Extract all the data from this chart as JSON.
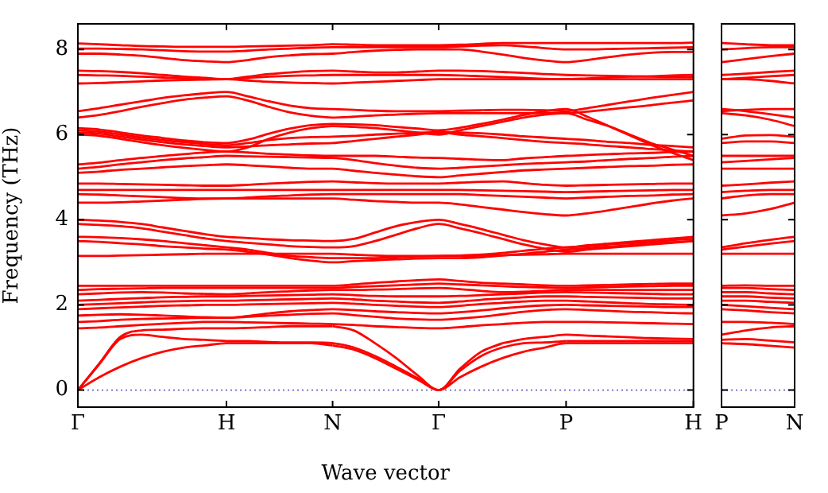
{
  "chart_data": [
    {
      "type": "line",
      "xlabel": "Wave vector",
      "ylabel": "Frequency (THz)",
      "marker": "none",
      "ylim": [
        -0.4,
        8.6
      ],
      "yticks": [
        0,
        2,
        4,
        6,
        8
      ],
      "categories": [
        "Γ",
        null,
        null,
        null,
        null,
        null,
        null,
        "H",
        null,
        null,
        null,
        null,
        "N",
        null,
        null,
        null,
        null,
        "Γ",
        null,
        null,
        null,
        null,
        null,
        "P",
        null,
        null,
        null,
        null,
        null,
        "H"
      ],
      "ref_lines": [
        {
          "axis": "y",
          "value": 0,
          "color": "#6666cc",
          "line_style": "dotted"
        }
      ],
      "series": [
        {
          "color": "#ff0000",
          "values": [
            0,
            0.3,
            0.55,
            0.75,
            0.9,
            1.0,
            1.05,
            1.1,
            1.1,
            1.1,
            1.1,
            1.1,
            1.05,
            null,
            null,
            null,
            null,
            null,
            null,
            null,
            null,
            null,
            null,
            null,
            null,
            null,
            null,
            null,
            null,
            null
          ]
        },
        {
          "color": "#ff0000",
          "values": [
            null,
            null,
            null,
            null,
            null,
            null,
            null,
            null,
            null,
            null,
            null,
            null,
            1.05,
            0.95,
            0.75,
            0.5,
            0.25,
            0,
            0.3,
            0.55,
            0.75,
            0.9,
            1.0,
            1.1,
            1.1,
            1.1,
            1.1,
            1.1,
            1.1,
            1.1
          ]
        },
        {
          "color": "#ff0000",
          "values": [
            0,
            0.6,
            1.2,
            1.3,
            1.25,
            1.2,
            1.18,
            1.15,
            null,
            null,
            null,
            null,
            null,
            null,
            null,
            null,
            null,
            null,
            null,
            null,
            null,
            null,
            null,
            null,
            null,
            null,
            null,
            null,
            null,
            null
          ]
        },
        {
          "color": "#ff0000",
          "values": [
            null,
            null,
            null,
            null,
            null,
            null,
            null,
            1.15,
            1.15,
            1.13,
            1.12,
            1.12,
            1.1,
            1.0,
            0.8,
            0.55,
            0.28,
            0,
            0.45,
            0.8,
            1.0,
            1.1,
            1.12,
            1.15,
            null,
            null,
            null,
            null,
            null,
            null
          ]
        },
        {
          "color": "#ff0000",
          "values": [
            null,
            null,
            null,
            null,
            null,
            null,
            null,
            null,
            null,
            null,
            null,
            null,
            null,
            null,
            null,
            null,
            null,
            null,
            null,
            null,
            null,
            null,
            null,
            1.15,
            1.15,
            1.15,
            1.15,
            1.15,
            1.15,
            1.15
          ]
        },
        {
          "color": "#ff0000",
          "values": [
            0,
            0.62,
            1.25,
            1.4,
            1.42,
            1.44,
            1.45,
            1.45,
            1.46,
            1.48,
            1.5,
            1.5,
            1.5,
            null,
            null,
            null,
            null,
            null,
            null,
            null,
            null,
            null,
            null,
            null,
            null,
            null,
            null,
            null,
            null,
            null
          ]
        },
        {
          "color": "#ff0000",
          "values": [
            null,
            null,
            null,
            null,
            null,
            null,
            null,
            null,
            null,
            null,
            null,
            null,
            1.5,
            1.4,
            1.1,
            0.75,
            0.35,
            0,
            0.5,
            0.9,
            1.1,
            null,
            null,
            null,
            null,
            null,
            null,
            null,
            null,
            null
          ]
        },
        {
          "color": "#ff0000",
          "values": [
            null,
            null,
            null,
            null,
            null,
            null,
            null,
            null,
            null,
            null,
            null,
            null,
            null,
            null,
            null,
            null,
            null,
            null,
            null,
            null,
            1.1,
            1.2,
            1.25,
            1.3,
            1.28,
            1.26,
            1.24,
            1.22,
            1.21,
            1.2
          ]
        },
        {
          "color": "#ff0000",
          "values": [
            1.45,
            1.47,
            1.5,
            1.53,
            1.56,
            1.58,
            1.6,
            1.6,
            1.59,
            1.58,
            1.57,
            1.56,
            1.55,
            1.53,
            1.5,
            1.48,
            1.46,
            1.45,
            1.48,
            1.52,
            1.55,
            1.58,
            1.6,
            1.6,
            1.6,
            1.59,
            1.58,
            1.57,
            1.56,
            1.55
          ]
        },
        {
          "color": "#ff0000",
          "values": [
            1.6,
            1.62,
            1.65,
            1.67,
            1.68,
            1.69,
            1.7,
            1.7,
            1.72,
            1.75,
            1.77,
            1.79,
            1.8,
            1.76,
            1.72,
            1.68,
            1.66,
            1.65,
            1.68,
            1.72,
            1.78,
            1.84,
            1.88,
            1.9,
            1.88,
            1.86,
            1.84,
            1.83,
            1.81,
            1.8
          ]
        },
        {
          "color": "#ff0000",
          "values": [
            1.75,
            1.77,
            1.78,
            1.77,
            1.75,
            1.73,
            1.71,
            1.7,
            1.74,
            1.8,
            1.85,
            1.88,
            1.9,
            1.88,
            1.85,
            1.83,
            1.81,
            1.8,
            1.83,
            1.87,
            1.92,
            1.96,
            1.99,
            2.0,
            1.99,
            1.98,
            1.97,
            1.96,
            1.95,
            1.95
          ]
        },
        {
          "color": "#ff0000",
          "values": [
            1.9,
            1.92,
            1.94,
            1.96,
            1.98,
            1.99,
            2.0,
            2.0,
            2.01,
            2.02,
            2.03,
            2.04,
            2.05,
            2.03,
            2.0,
            1.98,
            1.96,
            1.95,
            1.98,
            2.02,
            2.05,
            2.08,
            2.1,
            2.1,
            2.08,
            2.06,
            2.04,
            2.02,
            2.01,
            2.0
          ]
        },
        {
          "color": "#ff0000",
          "values": [
            2.0,
            2.02,
            2.04,
            2.06,
            2.08,
            2.09,
            2.1,
            2.1,
            2.11,
            2.12,
            2.13,
            2.14,
            2.15,
            2.13,
            2.1,
            2.08,
            2.06,
            2.05,
            2.08,
            2.12,
            2.15,
            2.18,
            2.2,
            2.2,
            2.19,
            2.18,
            2.17,
            2.16,
            2.15,
            2.15
          ]
        },
        {
          "color": "#ff0000",
          "values": [
            2.1,
            2.12,
            2.14,
            2.16,
            2.18,
            2.19,
            2.2,
            2.2,
            2.21,
            2.22,
            2.23,
            2.24,
            2.25,
            2.23,
            2.21,
            2.2,
            2.2,
            2.2,
            2.21,
            2.23,
            2.25,
            2.27,
            2.29,
            2.3,
            2.29,
            2.28,
            2.27,
            2.26,
            2.25,
            2.25
          ]
        },
        {
          "color": "#ff0000",
          "values": [
            2.25,
            2.27,
            2.29,
            2.3,
            2.29,
            2.27,
            2.26,
            2.25,
            2.27,
            2.3,
            2.32,
            2.34,
            2.35,
            2.35,
            2.36,
            2.37,
            2.39,
            2.4,
            2.37,
            2.33,
            2.3,
            2.31,
            2.33,
            2.35,
            2.35,
            2.35,
            2.35,
            2.35,
            2.35,
            2.35
          ]
        },
        {
          "color": "#ff0000",
          "values": [
            2.35,
            2.37,
            2.38,
            2.39,
            2.4,
            2.4,
            2.4,
            2.4,
            2.4,
            2.4,
            2.4,
            2.4,
            2.4,
            2.42,
            2.44,
            2.46,
            2.48,
            2.5,
            2.48,
            2.46,
            2.44,
            2.42,
            2.41,
            2.4,
            2.41,
            2.42,
            2.43,
            2.44,
            2.45,
            2.45
          ]
        },
        {
          "color": "#ff0000",
          "values": [
            2.45,
            2.45,
            2.45,
            2.45,
            2.45,
            2.45,
            2.45,
            2.45,
            2.45,
            2.45,
            2.45,
            2.45,
            2.45,
            2.48,
            2.52,
            2.55,
            2.58,
            2.6,
            2.56,
            2.52,
            2.5,
            2.48,
            2.46,
            2.45,
            2.46,
            2.47,
            2.48,
            2.49,
            2.5,
            2.5
          ]
        },
        {
          "color": "#ff0000",
          "values": [
            3.15,
            3.15,
            3.16,
            3.17,
            3.18,
            3.19,
            3.2,
            3.2,
            3.2,
            3.2,
            3.2,
            3.2,
            3.2,
            3.18,
            3.16,
            3.15,
            3.15,
            3.15,
            3.15,
            3.16,
            3.17,
            3.18,
            3.19,
            3.2,
            3.2,
            3.2,
            3.2,
            3.2,
            3.2,
            3.2
          ]
        },
        {
          "color": "#ff0000",
          "values": [
            3.5,
            3.48,
            3.45,
            3.42,
            3.38,
            3.35,
            3.32,
            3.3,
            3.25,
            3.18,
            3.1,
            3.04,
            3.0,
            3.03,
            3.05,
            3.07,
            3.09,
            3.1,
            3.1,
            3.12,
            3.16,
            3.2,
            3.25,
            3.3,
            3.33,
            3.37,
            3.4,
            3.44,
            3.47,
            3.5
          ]
        },
        {
          "color": "#ff0000",
          "values": [
            3.6,
            3.59,
            3.57,
            3.54,
            3.5,
            3.45,
            3.4,
            3.35,
            3.3,
            3.22,
            3.15,
            3.12,
            3.1,
            3.1,
            3.1,
            3.12,
            3.14,
            3.15,
            3.16,
            3.18,
            3.22,
            3.27,
            3.32,
            3.35,
            3.38,
            3.42,
            3.45,
            3.48,
            3.52,
            3.55
          ]
        },
        {
          "color": "#ff0000",
          "values": [
            3.9,
            3.88,
            3.85,
            3.8,
            3.72,
            3.64,
            3.56,
            3.5,
            3.46,
            3.42,
            3.38,
            3.36,
            3.35,
            3.38,
            3.5,
            3.65,
            3.8,
            3.9,
            3.8,
            3.68,
            3.55,
            3.42,
            3.32,
            3.25,
            3.3,
            3.34,
            3.38,
            3.42,
            3.46,
            3.5
          ]
        },
        {
          "color": "#ff0000",
          "values": [
            4.0,
            3.98,
            3.95,
            3.9,
            3.82,
            3.74,
            3.66,
            3.6,
            3.57,
            3.54,
            3.52,
            3.51,
            3.5,
            3.55,
            3.7,
            3.85,
            3.95,
            4.0,
            3.9,
            3.78,
            3.65,
            3.52,
            3.42,
            3.35,
            3.4,
            3.44,
            3.48,
            3.52,
            3.56,
            3.6
          ]
        },
        {
          "color": "#ff0000",
          "values": [
            4.4,
            4.4,
            4.41,
            4.43,
            4.45,
            4.47,
            4.49,
            4.5,
            4.5,
            4.5,
            4.5,
            4.5,
            4.5,
            4.47,
            4.44,
            4.42,
            4.4,
            4.4,
            4.36,
            4.3,
            4.24,
            4.18,
            4.13,
            4.1,
            4.15,
            4.22,
            4.3,
            4.38,
            4.45,
            4.5
          ]
        },
        {
          "color": "#ff0000",
          "values": [
            4.6,
            4.59,
            4.57,
            4.55,
            4.53,
            4.51,
            4.5,
            4.5,
            4.52,
            4.55,
            4.57,
            4.59,
            4.6,
            4.6,
            4.6,
            4.6,
            4.6,
            4.6,
            4.6,
            4.58,
            4.56,
            4.54,
            4.52,
            4.5,
            4.52,
            4.54,
            4.56,
            4.57,
            4.59,
            4.6
          ]
        },
        {
          "color": "#ff0000",
          "values": [
            4.7,
            4.7,
            4.7,
            4.7,
            4.7,
            4.7,
            4.7,
            4.7,
            4.7,
            4.7,
            4.7,
            4.7,
            4.7,
            4.7,
            4.7,
            4.7,
            4.7,
            4.7,
            4.7,
            4.69,
            4.68,
            4.67,
            4.66,
            4.65,
            4.66,
            4.67,
            4.68,
            4.69,
            4.7,
            4.7
          ]
        },
        {
          "color": "#ff0000",
          "values": [
            4.85,
            4.85,
            4.84,
            4.83,
            4.82,
            4.81,
            4.8,
            4.8,
            4.82,
            4.85,
            4.87,
            4.89,
            4.9,
            4.88,
            4.86,
            4.85,
            4.85,
            4.85,
            4.87,
            4.89,
            4.9,
            4.86,
            4.82,
            4.8,
            4.81,
            4.82,
            4.83,
            4.84,
            4.85,
            4.85
          ]
        },
        {
          "color": "#ff0000",
          "values": [
            5.1,
            5.13,
            5.17,
            5.2,
            5.23,
            5.26,
            5.28,
            5.3,
            5.28,
            5.25,
            5.22,
            5.2,
            5.2,
            5.15,
            5.1,
            5.06,
            5.02,
            5.0,
            5.04,
            5.08,
            5.12,
            5.16,
            5.18,
            5.2,
            5.22,
            5.24,
            5.26,
            5.27,
            5.29,
            5.3
          ]
        },
        {
          "color": "#ff0000",
          "values": [
            5.2,
            5.24,
            5.3,
            5.35,
            5.4,
            5.44,
            5.47,
            5.5,
            5.49,
            5.48,
            5.47,
            5.46,
            5.45,
            5.4,
            5.33,
            5.27,
            5.22,
            5.2,
            5.22,
            5.25,
            5.28,
            5.31,
            5.33,
            5.35,
            5.37,
            5.4,
            5.43,
            5.45,
            5.48,
            5.5
          ]
        },
        {
          "color": "#ff0000",
          "values": [
            5.3,
            5.34,
            5.4,
            5.45,
            5.5,
            5.54,
            5.58,
            5.6,
            5.58,
            5.55,
            5.53,
            5.51,
            5.5,
            5.5,
            5.5,
            5.48,
            5.46,
            5.45,
            5.43,
            5.41,
            5.4,
            5.44,
            5.47,
            5.5,
            5.52,
            5.54,
            5.56,
            5.57,
            5.59,
            5.6
          ]
        },
        {
          "color": "#ff0000",
          "values": [
            6.05,
            6.02,
            5.95,
            5.88,
            5.82,
            5.77,
            5.73,
            5.7,
            5.72,
            5.75,
            5.77,
            5.79,
            5.8,
            5.85,
            5.9,
            5.95,
            6.0,
            6.05,
            6.0,
            5.96,
            5.92,
            5.87,
            5.83,
            5.8,
            5.77,
            5.73,
            5.7,
            5.66,
            5.63,
            5.6
          ]
        },
        {
          "color": "#ff0000",
          "values": [
            6.1,
            6.07,
            6.0,
            5.93,
            5.87,
            5.82,
            5.78,
            5.75,
            5.8,
            5.87,
            5.92,
            5.94,
            5.95,
            5.97,
            6.0,
            6.02,
            6.04,
            6.06,
            6.05,
            6.03,
            6.0,
            5.96,
            5.93,
            5.9,
            5.87,
            5.83,
            5.8,
            5.76,
            5.73,
            5.7
          ]
        },
        {
          "color": "#ff0000",
          "values": [
            6.0,
            5.97,
            5.9,
            5.82,
            5.75,
            5.69,
            5.64,
            5.6,
            5.7,
            5.9,
            6.05,
            6.15,
            6.2,
            6.18,
            6.15,
            6.1,
            6.05,
            6.0,
            6.1,
            6.2,
            6.3,
            6.4,
            6.47,
            6.5,
            6.35,
            6.2,
            6.0,
            5.8,
            5.65,
            5.5
          ]
        },
        {
          "color": "#ff0000",
          "values": [
            6.15,
            6.12,
            6.05,
            5.98,
            5.92,
            5.86,
            5.82,
            5.8,
            5.88,
            6.02,
            6.14,
            6.22,
            6.25,
            6.24,
            6.22,
            6.18,
            6.14,
            6.1,
            6.16,
            6.25,
            6.35,
            6.46,
            6.55,
            6.6,
            6.42,
            6.2,
            5.98,
            5.76,
            5.57,
            5.4
          ]
        },
        {
          "color": "#ff0000",
          "values": [
            6.4,
            6.46,
            6.55,
            6.65,
            6.74,
            6.82,
            6.87,
            6.9,
            6.8,
            6.65,
            6.52,
            6.44,
            6.4,
            6.42,
            6.45,
            6.47,
            6.49,
            6.5,
            6.5,
            6.5,
            6.5,
            6.5,
            6.5,
            6.5,
            6.54,
            6.59,
            6.64,
            6.69,
            6.75,
            6.8
          ]
        },
        {
          "color": "#ff0000",
          "values": [
            6.55,
            6.62,
            6.7,
            6.78,
            6.86,
            6.92,
            6.97,
            7.0,
            6.9,
            6.78,
            6.68,
            6.62,
            6.6,
            6.58,
            6.56,
            6.55,
            6.55,
            6.55,
            6.56,
            6.57,
            6.58,
            6.58,
            6.57,
            6.55,
            6.62,
            6.7,
            6.78,
            6.86,
            6.93,
            7.0
          ]
        },
        {
          "color": "#ff0000",
          "values": [
            7.2,
            7.21,
            7.23,
            7.25,
            7.27,
            7.28,
            7.29,
            7.3,
            7.27,
            7.24,
            7.22,
            7.21,
            7.2,
            7.22,
            7.24,
            7.26,
            7.28,
            7.3,
            7.3,
            7.3,
            7.3,
            7.3,
            7.3,
            7.3,
            7.3,
            7.3,
            7.3,
            7.3,
            7.3,
            7.3
          ]
        },
        {
          "color": "#ff0000",
          "values": [
            7.4,
            7.39,
            7.38,
            7.36,
            7.34,
            7.32,
            7.31,
            7.3,
            7.33,
            7.36,
            7.38,
            7.39,
            7.4,
            7.4,
            7.4,
            7.4,
            7.4,
            7.4,
            7.39,
            7.37,
            7.35,
            7.33,
            7.31,
            7.3,
            7.32,
            7.34,
            7.36,
            7.37,
            7.39,
            7.4
          ]
        },
        {
          "color": "#ff0000",
          "values": [
            7.5,
            7.49,
            7.47,
            7.44,
            7.4,
            7.36,
            7.33,
            7.3,
            7.36,
            7.42,
            7.46,
            7.49,
            7.5,
            7.48,
            7.46,
            7.46,
            7.48,
            7.5,
            7.5,
            7.49,
            7.47,
            7.45,
            7.42,
            7.4,
            7.39,
            7.38,
            7.37,
            7.36,
            7.35,
            7.35
          ]
        },
        {
          "color": "#ff0000",
          "values": [
            7.9,
            7.9,
            7.88,
            7.85,
            7.8,
            7.75,
            7.72,
            7.7,
            7.75,
            7.82,
            7.86,
            7.89,
            7.9,
            7.94,
            7.97,
            7.99,
            8.0,
            8.0,
            8.0,
            7.95,
            7.88,
            7.8,
            7.74,
            7.7,
            7.75,
            7.82,
            7.88,
            7.92,
            7.94,
            7.94
          ]
        },
        {
          "color": "#ff0000",
          "values": [
            8.02,
            8.02,
            8.01,
            8.0,
            7.98,
            7.96,
            7.95,
            7.95,
            7.97,
            8.0,
            8.02,
            8.04,
            8.05,
            8.05,
            8.05,
            8.05,
            8.05,
            8.05,
            8.07,
            8.09,
            8.1,
            8.07,
            8.03,
            8.0,
            8.0,
            8.01,
            8.02,
            8.03,
            8.04,
            8.05
          ]
        },
        {
          "color": "#ff0000",
          "values": [
            8.14,
            8.12,
            8.1,
            8.08,
            8.07,
            8.06,
            8.06,
            8.06,
            8.07,
            8.08,
            8.09,
            8.1,
            8.12,
            8.11,
            8.1,
            8.1,
            8.1,
            8.1,
            8.11,
            8.13,
            8.15,
            8.15,
            8.15,
            8.15,
            8.15,
            8.15,
            8.15,
            8.15,
            8.15,
            8.16
          ]
        }
      ]
    },
    {
      "type": "line",
      "marker": "none",
      "tick_labels": "x",
      "ylim": [
        -0.4,
        8.6
      ],
      "yticks": [
        0,
        2,
        4,
        6,
        8
      ],
      "categories": [
        "P",
        null,
        null,
        "N"
      ],
      "ref_lines": [
        {
          "axis": "y",
          "value": 0,
          "color": "#6666cc",
          "line_style": "dotted"
        }
      ],
      "series": [
        {
          "color": "#ff0000",
          "values": [
            1.1,
            1.08,
            1.04,
            1.0
          ]
        },
        {
          "color": "#ff0000",
          "values": [
            1.18,
            1.2,
            1.16,
            1.12
          ]
        },
        {
          "color": "#ff0000",
          "values": [
            1.3,
            1.4,
            1.47,
            1.5
          ]
        },
        {
          "color": "#ff0000",
          "values": [
            1.6,
            1.6,
            1.58,
            1.55
          ]
        },
        {
          "color": "#ff0000",
          "values": [
            1.9,
            1.87,
            1.83,
            1.8
          ]
        },
        {
          "color": "#ff0000",
          "values": [
            2.0,
            1.97,
            1.93,
            1.9
          ]
        },
        {
          "color": "#ff0000",
          "values": [
            2.1,
            2.1,
            2.07,
            2.05
          ]
        },
        {
          "color": "#ff0000",
          "values": [
            2.2,
            2.2,
            2.17,
            2.15
          ]
        },
        {
          "color": "#ff0000",
          "values": [
            2.3,
            2.3,
            2.27,
            2.25
          ]
        },
        {
          "color": "#ff0000",
          "values": [
            2.4,
            2.4,
            2.37,
            2.35
          ]
        },
        {
          "color": "#ff0000",
          "values": [
            2.45,
            2.46,
            2.45,
            2.45
          ]
        },
        {
          "color": "#ff0000",
          "values": [
            3.2,
            3.2,
            3.2,
            3.2
          ]
        },
        {
          "color": "#ff0000",
          "values": [
            3.3,
            3.37,
            3.44,
            3.5
          ]
        },
        {
          "color": "#ff0000",
          "values": [
            3.35,
            3.45,
            3.53,
            3.6
          ]
        },
        {
          "color": "#ff0000",
          "values": [
            4.1,
            4.15,
            4.25,
            4.4
          ]
        },
        {
          "color": "#ff0000",
          "values": [
            4.5,
            4.57,
            4.6,
            4.6
          ]
        },
        {
          "color": "#ff0000",
          "values": [
            4.65,
            4.68,
            4.7,
            4.7
          ]
        },
        {
          "color": "#ff0000",
          "values": [
            4.8,
            4.83,
            4.87,
            4.9
          ]
        },
        {
          "color": "#ff0000",
          "values": [
            5.2,
            5.2,
            5.2,
            5.2
          ]
        },
        {
          "color": "#ff0000",
          "values": [
            5.35,
            5.38,
            5.42,
            5.45
          ]
        },
        {
          "color": "#ff0000",
          "values": [
            5.5,
            5.5,
            5.5,
            5.5
          ]
        },
        {
          "color": "#ff0000",
          "values": [
            5.8,
            5.84,
            5.84,
            5.8
          ]
        },
        {
          "color": "#ff0000",
          "values": [
            5.9,
            5.98,
            5.99,
            5.95
          ]
        },
        {
          "color": "#ff0000",
          "values": [
            6.5,
            6.45,
            6.35,
            6.2
          ]
        },
        {
          "color": "#ff0000",
          "values": [
            6.6,
            6.55,
            6.48,
            6.4
          ]
        },
        {
          "color": "#ff0000",
          "values": [
            6.55,
            6.58,
            6.6,
            6.6
          ]
        },
        {
          "color": "#ff0000",
          "values": [
            7.3,
            7.3,
            7.26,
            7.2
          ]
        },
        {
          "color": "#ff0000",
          "values": [
            7.3,
            7.33,
            7.37,
            7.4
          ]
        },
        {
          "color": "#ff0000",
          "values": [
            7.4,
            7.43,
            7.47,
            7.5
          ]
        },
        {
          "color": "#ff0000",
          "values": [
            7.7,
            7.77,
            7.84,
            7.9
          ]
        },
        {
          "color": "#ff0000",
          "values": [
            8.0,
            8.03,
            8.05,
            8.05
          ]
        },
        {
          "color": "#ff0000",
          "values": [
            8.15,
            8.12,
            8.1,
            8.1
          ]
        }
      ]
    }
  ]
}
